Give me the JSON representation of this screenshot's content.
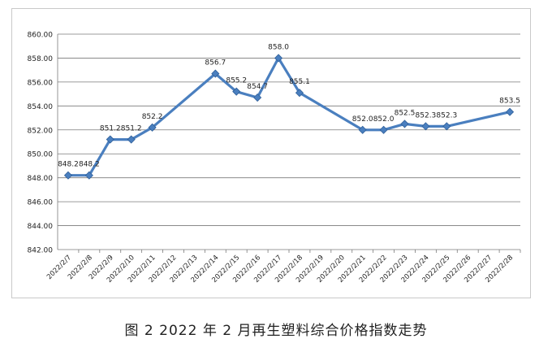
{
  "caption": "图 2  2022 年 2 月再生塑料综合价格指数走势",
  "chart_data": {
    "type": "line",
    "title": "",
    "xlabel": "",
    "ylabel": "",
    "ylim": [
      842,
      860
    ],
    "y_ticks": [
      "842.00",
      "844.00",
      "846.00",
      "848.00",
      "850.00",
      "852.00",
      "854.00",
      "856.00",
      "858.00",
      "860.00"
    ],
    "grid": true,
    "x": [
      "2022/2/7",
      "2022/2/8",
      "2022/2/9",
      "2022/2/10",
      "2022/2/11",
      "2022/2/12",
      "2022/2/13",
      "2022/2/14",
      "2022/2/15",
      "2022/2/16",
      "2022/2/17",
      "2022/2/18",
      "2022/2/19",
      "2022/2/20",
      "2022/2/21",
      "2022/2/22",
      "2022/2/23",
      "2022/2/24",
      "2022/2/25",
      "2022/2/26",
      "2022/2/27",
      "2022/2/28"
    ],
    "series": [
      {
        "values": [
          848.2,
          848.2,
          851.2,
          851.2,
          852.2,
          null,
          null,
          856.7,
          855.2,
          854.7,
          858.0,
          855.1,
          null,
          null,
          852.0,
          852.0,
          852.5,
          852.3,
          852.3,
          null,
          null,
          853.5
        ],
        "labels": [
          "848.2",
          "848.2",
          "851.2",
          "851.2",
          "852.2",
          null,
          null,
          "856.7",
          "855.2",
          "854.7",
          "858.0",
          "855.1",
          null,
          null,
          "852.0",
          "852.0",
          "852.5",
          "852.3",
          "852.3",
          null,
          null,
          "853.5"
        ],
        "color": "#4a7fbf"
      }
    ]
  }
}
